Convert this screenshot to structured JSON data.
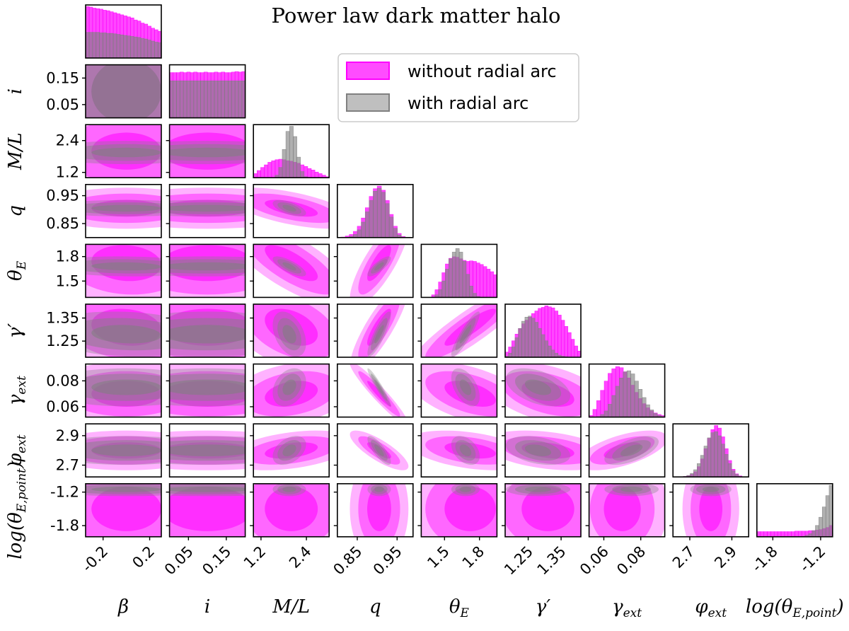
{
  "title": "Power law dark matter halo",
  "colors": {
    "without": "#ff00ff",
    "with": "#808080",
    "frame": "#000000"
  },
  "legend": {
    "position": "upper-center",
    "entries": [
      {
        "label": "without radial arc",
        "color": "#ff00ff",
        "alpha": 0.7
      },
      {
        "label": "with radial arc",
        "color": "#808080",
        "alpha": 0.5
      }
    ]
  },
  "chart_data": {
    "type": "corner",
    "title": "Power law dark matter halo",
    "parameters": [
      {
        "key": "beta",
        "label": "β",
        "range": [
          -0.35,
          0.3
        ],
        "ticks": [
          -0.2,
          0.2
        ],
        "tick_labels": [
          "-0.2",
          "0.2"
        ]
      },
      {
        "key": "i",
        "label": "i",
        "range": [
          0.0,
          0.2
        ],
        "ticks": [
          0.05,
          0.15
        ],
        "tick_labels": [
          "0.05",
          "0.15"
        ]
      },
      {
        "key": "ml",
        "label": "M/L",
        "range": [
          1.0,
          3.0
        ],
        "ticks": [
          1.2,
          2.4
        ],
        "tick_labels": [
          "1.2",
          "2.4"
        ]
      },
      {
        "key": "q",
        "label": "q",
        "range": [
          0.8,
          0.99
        ],
        "ticks": [
          0.85,
          0.95
        ],
        "tick_labels": [
          "0.85",
          "0.95"
        ]
      },
      {
        "key": "thetaE",
        "label": "θ_E",
        "range": [
          1.3,
          1.95
        ],
        "ticks": [
          1.5,
          1.8
        ],
        "tick_labels": [
          "1.5",
          "1.8"
        ]
      },
      {
        "key": "gamma",
        "label": "γ′",
        "range": [
          1.18,
          1.41
        ],
        "ticks": [
          1.25,
          1.35
        ],
        "tick_labels": [
          "1.25",
          "1.35"
        ]
      },
      {
        "key": "gext",
        "label": "γ_ext",
        "range": [
          0.052,
          0.093
        ],
        "ticks": [
          0.06,
          0.08
        ],
        "tick_labels": [
          "0.06",
          "0.08"
        ]
      },
      {
        "key": "phiext",
        "label": "φ_ext",
        "range": [
          2.62,
          2.98
        ],
        "ticks": [
          2.7,
          2.9
        ],
        "tick_labels": [
          "2.7",
          "2.9"
        ]
      },
      {
        "key": "logthetap",
        "label": "log(θ_E,point)",
        "range": [
          -2.0,
          -1.05
        ],
        "ticks": [
          -1.8,
          -1.2
        ],
        "tick_labels": [
          "-1.8",
          "-1.2"
        ]
      }
    ],
    "axis_labels": {
      "x": [
        "β",
        "i",
        "M/L",
        "q",
        "θ_E",
        "γ′",
        "γ_ext",
        "φ_ext",
        "log(θ_E,point)"
      ],
      "y": [
        "i",
        "M/L",
        "q",
        "θ_E",
        "γ′",
        "γ_ext",
        "φ_ext",
        "log(θ_E,point)"
      ]
    },
    "series": [
      {
        "name": "without radial arc",
        "color": "#ff00ff",
        "mean": [
          0.0,
          0.1,
          2.0,
          0.905,
          1.72,
          1.31,
          0.07,
          2.8,
          -1.5
        ],
        "std": [
          0.3,
          0.12,
          0.7,
          0.03,
          0.22,
          0.08,
          0.01,
          0.055,
          0.4
        ],
        "histograms": {
          "beta": [
            1.0,
            0.99,
            0.97,
            0.96,
            0.95,
            0.93,
            0.92,
            0.9,
            0.88,
            0.86,
            0.84,
            0.82,
            0.8,
            0.78,
            0.74,
            0.72,
            0.68,
            0.66,
            0.62,
            0.58,
            0.55,
            0.52
          ],
          "i": [
            0.88,
            0.88,
            0.88,
            0.89,
            0.88,
            0.89,
            0.88,
            0.89,
            0.88,
            0.88,
            0.89,
            0.88,
            0.88,
            0.89,
            0.88,
            0.89,
            0.88,
            0.88,
            0.89,
            0.9,
            0.89,
            0.9
          ],
          "ml": [
            0.08,
            0.14,
            0.2,
            0.25,
            0.3,
            0.33,
            0.35,
            0.36,
            0.35,
            0.33,
            0.32,
            0.3,
            0.28,
            0.25,
            0.22,
            0.18,
            0.15,
            0.11,
            0.08,
            0.05,
            0.02
          ],
          "q": [
            0.0,
            0.01,
            0.03,
            0.06,
            0.12,
            0.22,
            0.38,
            0.58,
            0.8,
            0.95,
            1.0,
            0.92,
            0.72,
            0.45,
            0.22,
            0.08,
            0.02,
            0.0,
            0.0
          ],
          "thetaE": [
            0.0,
            0.0,
            0.0,
            0.05,
            0.15,
            0.3,
            0.48,
            0.65,
            0.76,
            0.79,
            0.78,
            0.75,
            0.72,
            0.7,
            0.71,
            0.7,
            0.67,
            0.64,
            0.6,
            0.55,
            0.5,
            0.44
          ],
          "gamma": [
            0.1,
            0.2,
            0.32,
            0.45,
            0.56,
            0.65,
            0.72,
            0.78,
            0.85,
            0.9,
            0.95,
            0.97,
            1.0,
            0.98,
            0.96,
            0.9,
            0.82,
            0.72,
            0.6,
            0.48,
            0.35,
            0.22,
            0.12
          ],
          "gext": [
            0.03,
            0.15,
            0.32,
            0.52,
            0.7,
            0.85,
            0.94,
            0.98,
            0.96,
            0.88,
            0.76,
            0.62,
            0.48,
            0.36,
            0.26,
            0.18,
            0.12,
            0.08,
            0.05,
            0.03
          ],
          "phiext": [
            0.0,
            0.0,
            0.0,
            0.01,
            0.02,
            0.05,
            0.1,
            0.2,
            0.35,
            0.55,
            0.75,
            0.92,
            1.0,
            0.95,
            0.78,
            0.55,
            0.32,
            0.15,
            0.06,
            0.02,
            0.0,
            0.0
          ],
          "logthetap": [
            0.1,
            0.1,
            0.1,
            0.1,
            0.1,
            0.1,
            0.1,
            0.1,
            0.1,
            0.1,
            0.1,
            0.11,
            0.11,
            0.11,
            0.11,
            0.12,
            0.12,
            0.13,
            0.14,
            0.16,
            0.18,
            0.22
          ]
        }
      },
      {
        "name": "with radial arc",
        "color": "#808080",
        "mean": [
          0.0,
          0.1,
          1.95,
          0.905,
          1.68,
          1.28,
          0.075,
          2.8,
          -1.15
        ],
        "std": [
          0.3,
          0.12,
          0.18,
          0.012,
          0.05,
          0.04,
          0.006,
          0.04,
          0.05
        ],
        "histograms": {
          "beta": [
            0.5,
            0.5,
            0.5,
            0.5,
            0.49,
            0.49,
            0.48,
            0.48,
            0.47,
            0.46,
            0.45,
            0.44,
            0.43,
            0.42,
            0.41,
            0.4,
            0.38,
            0.37,
            0.35,
            0.33,
            0.31,
            0.3
          ],
          "i": [
            0.72,
            0.72,
            0.72,
            0.72,
            0.72,
            0.72,
            0.72,
            0.72,
            0.72,
            0.72,
            0.72,
            0.72,
            0.72,
            0.72,
            0.72,
            0.72,
            0.72,
            0.72,
            0.72,
            0.72,
            0.72,
            0.72
          ],
          "ml": [
            0.0,
            0.0,
            0.0,
            0.0,
            0.0,
            0.0,
            0.05,
            0.2,
            0.55,
            0.9,
            1.0,
            0.8,
            0.4,
            0.12,
            0.02,
            0.0,
            0.0,
            0.0,
            0.0,
            0.0,
            0.0
          ],
          "q": [
            0.0,
            0.0,
            0.0,
            0.02,
            0.06,
            0.15,
            0.3,
            0.5,
            0.72,
            0.9,
            0.96,
            0.88,
            0.66,
            0.4,
            0.18,
            0.05,
            0.01,
            0.0,
            0.0
          ],
          "thetaE": [
            0.0,
            0.0,
            0.0,
            0.0,
            0.05,
            0.15,
            0.32,
            0.55,
            0.75,
            0.88,
            0.95,
            0.88,
            0.7,
            0.45,
            0.22,
            0.08,
            0.02,
            0.0,
            0.0,
            0.0,
            0.0,
            0.0
          ],
          "gamma": [
            0.02,
            0.08,
            0.2,
            0.38,
            0.56,
            0.7,
            0.78,
            0.8,
            0.76,
            0.68,
            0.56,
            0.44,
            0.32,
            0.22,
            0.14,
            0.08,
            0.04,
            0.02,
            0.01,
            0.0,
            0.0,
            0.0,
            0.0
          ],
          "gext": [
            0.0,
            0.0,
            0.01,
            0.05,
            0.12,
            0.25,
            0.42,
            0.6,
            0.76,
            0.88,
            0.9,
            0.84,
            0.7,
            0.54,
            0.38,
            0.24,
            0.14,
            0.07,
            0.03,
            0.01
          ],
          "phiext": [
            0.0,
            0.0,
            0.0,
            0.01,
            0.03,
            0.07,
            0.14,
            0.26,
            0.42,
            0.6,
            0.76,
            0.86,
            0.88,
            0.8,
            0.64,
            0.44,
            0.26,
            0.12,
            0.05,
            0.01,
            0.0,
            0.0
          ],
          "logthetap": [
            0.0,
            0.0,
            0.0,
            0.0,
            0.0,
            0.0,
            0.0,
            0.0,
            0.0,
            0.0,
            0.0,
            0.0,
            0.0,
            0.01,
            0.03,
            0.06,
            0.12,
            0.22,
            0.38,
            0.58,
            0.8,
            1.0
          ]
        }
      }
    ],
    "correlations": {
      "q|ml": -0.6,
      "thetaE|ml": -0.75,
      "thetaE|q": 0.8,
      "gamma|ml": -0.4,
      "gamma|q": 0.85,
      "gamma|thetaE": 0.9,
      "gext|ml": 0.3,
      "gext|q": -0.95,
      "gext|thetaE": -0.5,
      "gext|gamma": -0.45,
      "phiext|ml": 0.4,
      "phiext|q": -0.8,
      "phiext|thetaE": -0.4,
      "phiext|gamma": -0.35,
      "phiext|gext": 0.6,
      "gamma|beta": -0.15,
      "thetaE|beta": -0.1
    }
  }
}
